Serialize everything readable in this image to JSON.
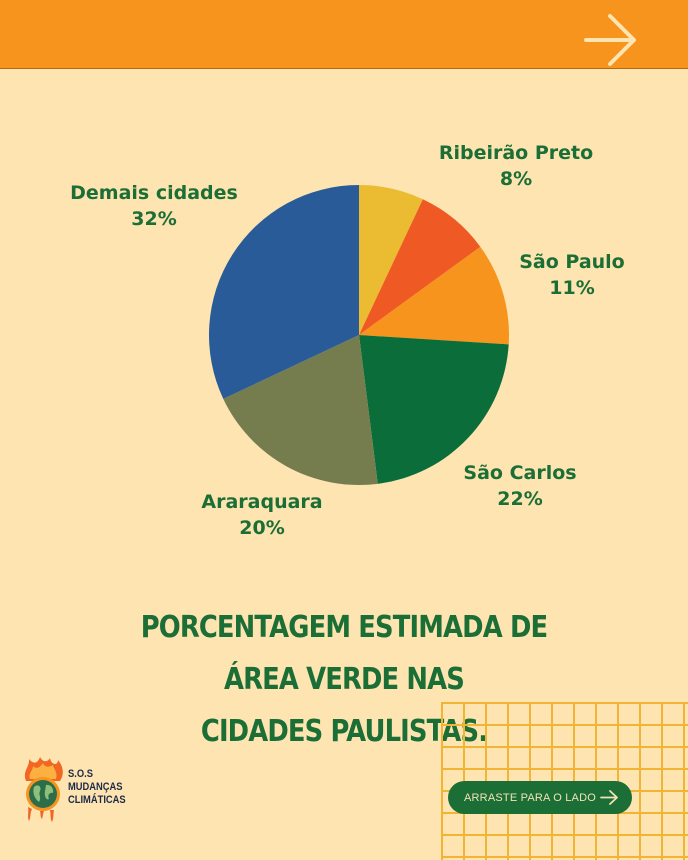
{
  "brand": {
    "logo_lines": [
      "S.O.S",
      "MUDANÇAS",
      "CLIMÁTICAS"
    ]
  },
  "title_lines": [
    "PORCENTAGEM ESTIMADA DE ÁREA VERDE NAS",
    "CIDADES PAULISTAS."
  ],
  "swipe_button": {
    "label": "ARRASTE PARA O LADO",
    "icon": "arrow-right-icon"
  },
  "header": {
    "icon": "arrow-right-icon",
    "color": "#f7941d"
  },
  "chart_data": {
    "type": "pie",
    "title": "",
    "unit": "%",
    "slices": [
      {
        "label": "Ribeirão Preto",
        "value": 8,
        "value_text": "8%",
        "color": "#ef5a24"
      },
      {
        "label": "São Paulo",
        "value": 11,
        "value_text": "11%",
        "color": "#f7941d"
      },
      {
        "label": "São Carlos",
        "value": 22,
        "value_text": "22%",
        "color": "#0b6e3a"
      },
      {
        "label": "Araraquara",
        "value": 20,
        "value_text": "20%",
        "color": "#757d4f"
      },
      {
        "label": "Demais cidades",
        "value": 32,
        "value_text": "32%",
        "color": "#2a5b99"
      },
      {
        "label": "",
        "value": 7,
        "value_text": "",
        "color": "#ebbb31"
      }
    ]
  }
}
